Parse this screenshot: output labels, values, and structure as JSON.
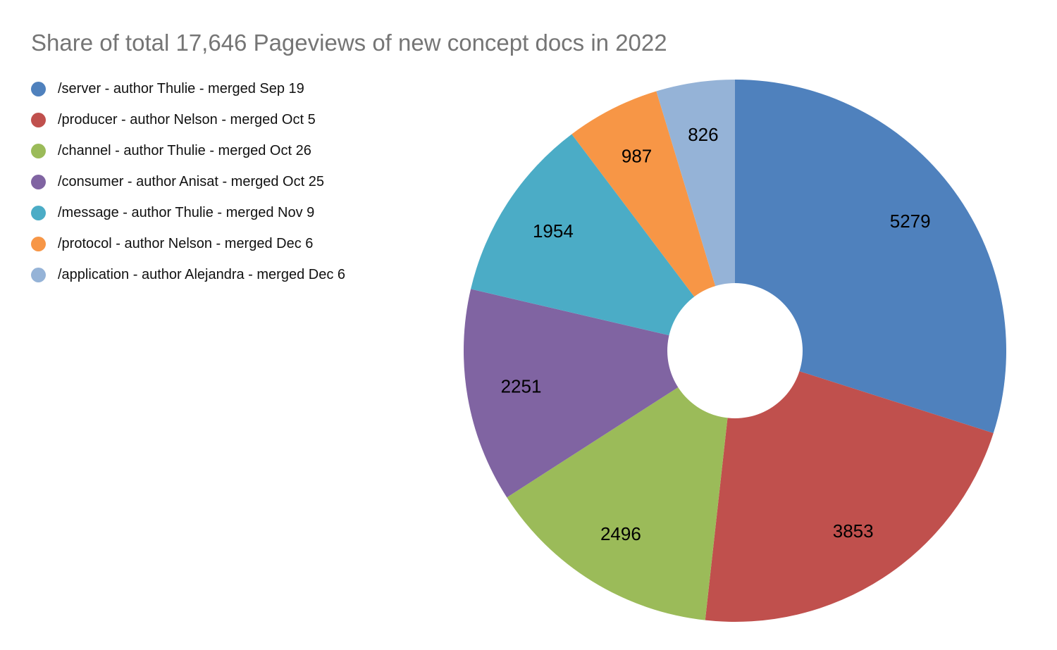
{
  "title": "Share of total 17,646 Pageviews of new concept docs in 2022",
  "title_color": "#757575",
  "background_color": "#ffffff",
  "chart_data": {
    "type": "pie",
    "title": "Share of total 17,646 Pageviews of new concept docs in 2022",
    "total": 17646,
    "donut_hole_ratio": 0.25,
    "start_angle_deg": 0,
    "direction": "clockwise",
    "legend_position": "top-left",
    "value_labels": "inside",
    "slices": [
      {
        "label": "/server - author Thulie - merged Sep 19",
        "value": 5279,
        "color": "#4F81BD"
      },
      {
        "label": "/producer - author Nelson - merged Oct 5",
        "value": 3853,
        "color": "#C0504D"
      },
      {
        "label": "/channel - author Thulie - merged Oct 26",
        "value": 2496,
        "color": "#9BBB59"
      },
      {
        "label": "/consumer - author Anisat - merged Oct 25",
        "value": 2251,
        "color": "#8064A2"
      },
      {
        "label": "/message - author Thulie - merged Nov 9",
        "value": 1954,
        "color": "#4BACC6"
      },
      {
        "label": "/protocol - author Nelson - merged Dec 6",
        "value": 987,
        "color": "#F79646"
      },
      {
        "label": "/application - author Alejandra - merged Dec 6",
        "value": 826,
        "color": "#95B3D7"
      }
    ]
  }
}
